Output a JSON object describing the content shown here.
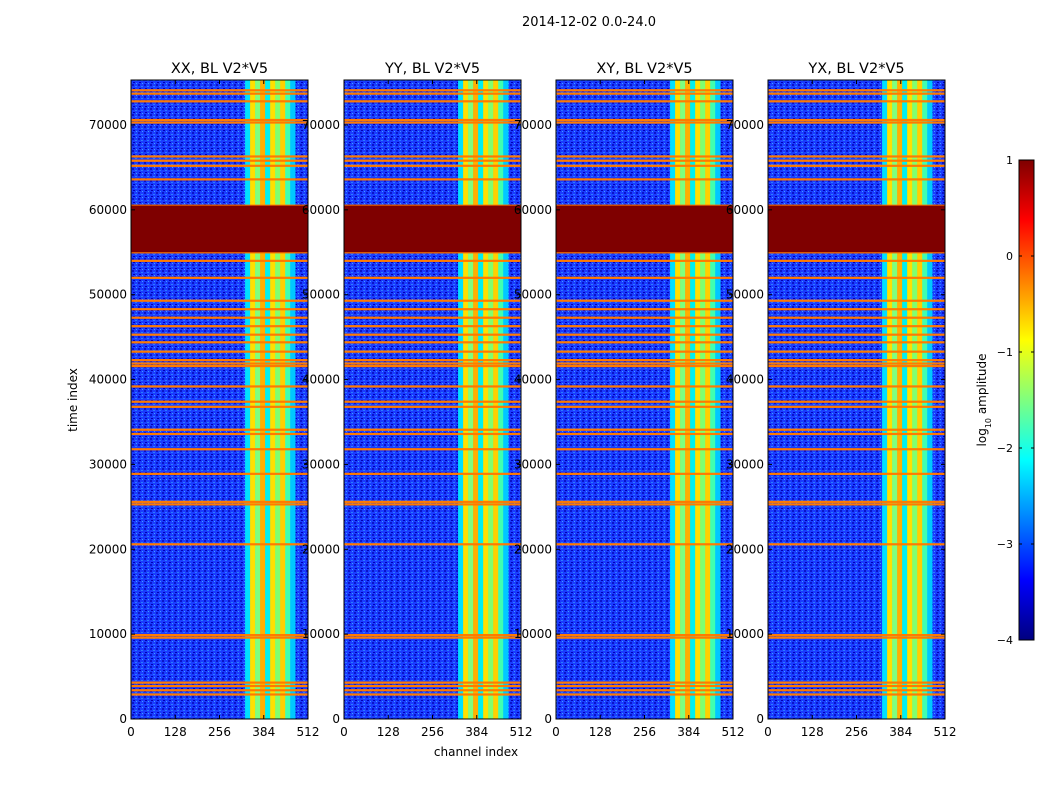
{
  "figure": {
    "suptitle": "2014-12-02 0.0-24.0",
    "xlabel": "channel index",
    "ylabel": "time index"
  },
  "chart_data": {
    "type": "heatmap",
    "suptitle": "2014-12-02 0.0-24.0",
    "xlabel": "channel index",
    "ylabel": "time index",
    "xlim": [
      0,
      512
    ],
    "ylim": [
      0,
      75300
    ],
    "xticks": [
      0,
      128,
      256,
      384,
      512
    ],
    "yticks": [
      0,
      10000,
      20000,
      30000,
      40000,
      50000,
      60000,
      70000
    ],
    "grid": false,
    "colormap": "jet",
    "panels": [
      {
        "title": "XX, BL V2*V5"
      },
      {
        "title": "YY, BL V2*V5"
      },
      {
        "title": "XY, BL V2*V5"
      },
      {
        "title": "YX, BL V2*V5"
      }
    ],
    "colorbar": {
      "label_main": "log",
      "label_sub": "10",
      "label_rest": " amplitude",
      "vmin": -4,
      "vmax": 1,
      "ticks": [
        1,
        0,
        -1,
        -2,
        -3,
        -4
      ],
      "tick_labels": [
        "1",
        "0",
        "−1",
        "−2",
        "−3",
        "−4"
      ],
      "colors": [
        "#00007f",
        "#0000ff",
        "#007fff",
        "#00ffff",
        "#7fff7f",
        "#ffff00",
        "#ff7f00",
        "#ff0000",
        "#7f0000"
      ]
    },
    "features": {
      "saturated_block": {
        "time_start": 55000,
        "time_end": 60500,
        "log_amp": 1
      },
      "bright_channel_band": {
        "channel_start": 330,
        "channel_end": 475,
        "log_amp_approx": -1
      },
      "flagged_rows": [
        2900,
        3400,
        3900,
        4300,
        9600,
        9900,
        20600,
        25300,
        25600,
        28900,
        31800,
        33600,
        34100,
        36800,
        37400,
        39200,
        41600,
        41900,
        42300,
        43300,
        44400,
        45300,
        46300,
        47300,
        48300,
        49300,
        52000,
        54000,
        55000,
        60500,
        63600,
        65200,
        65800,
        66300,
        70300,
        70600,
        72800,
        73700,
        74100
      ],
      "background_log_amp_approx": -3
    }
  }
}
